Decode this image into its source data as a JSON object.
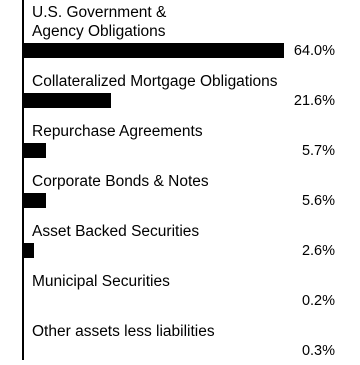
{
  "chart_data": {
    "type": "bar",
    "orientation": "horizontal",
    "color": "#000000",
    "categories": [
      "U.S. Government &\nAgency Obligations",
      "Collateralized Mortgage Obligations",
      "Repurchase Agreements",
      "Corporate Bonds & Notes",
      "Asset Backed Securities",
      "Municipal Securities",
      "Other assets less liabilities"
    ],
    "values": [
      64.0,
      21.6,
      5.7,
      5.6,
      2.6,
      0.2,
      0.3
    ],
    "value_labels": [
      "64.0%",
      "21.6%",
      "5.7%",
      "5.6%",
      "2.6%",
      "0.2%",
      "0.3%"
    ]
  }
}
